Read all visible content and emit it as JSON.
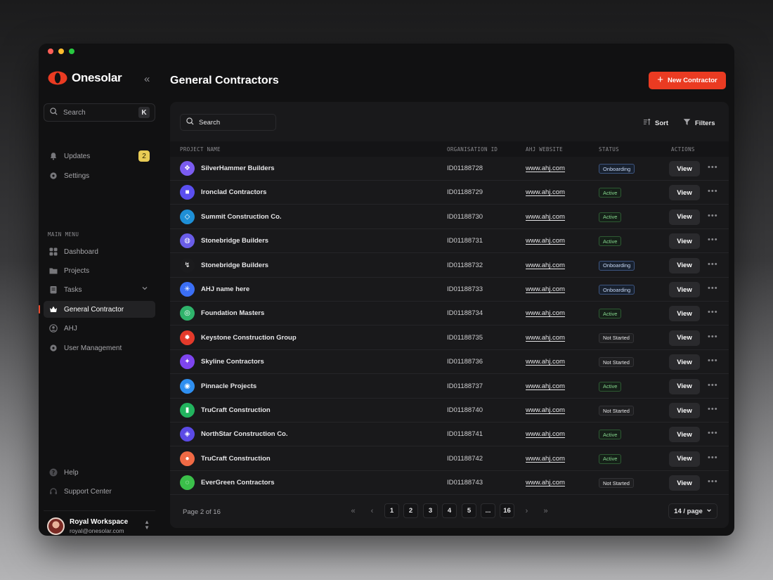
{
  "app": {
    "name": "Onesolar"
  },
  "sidebar": {
    "search_label": "Search",
    "search_shortcut": "K",
    "top_items": [
      {
        "label": "Updates",
        "icon": "bell-icon",
        "badge": "2"
      },
      {
        "label": "Settings",
        "icon": "gear-icon"
      }
    ],
    "section_label": "MAIN MENU",
    "menu_items": [
      {
        "label": "Dashboard",
        "icon": "grid-icon"
      },
      {
        "label": "Projects",
        "icon": "folder-icon"
      },
      {
        "label": "Tasks",
        "icon": "clipboard-icon"
      },
      {
        "label": "General Contractor",
        "icon": "crown-icon",
        "active": true
      },
      {
        "label": "AHJ",
        "icon": "user-circle-icon"
      },
      {
        "label": "User Management",
        "icon": "gear-icon"
      }
    ],
    "bottom_items": [
      {
        "label": "Help",
        "icon": "help-icon"
      },
      {
        "label": "Support Center",
        "icon": "headset-icon"
      }
    ],
    "user": {
      "name": "Royal Workspace",
      "email": "royal@onesolar.com"
    }
  },
  "header": {
    "title": "General Contractors",
    "new_button": "New Contractor"
  },
  "toolbar": {
    "search_label": "Search",
    "sort_label": "Sort",
    "filters_label": "Filters"
  },
  "table": {
    "columns": [
      "PROJECT NAME",
      "ORGANISATION ID",
      "AHJ WEBSITE",
      "STATUS",
      "ACTIONS"
    ],
    "view_label": "View",
    "rows": [
      {
        "name": "SilverHammer Builders",
        "org_id": "ID01188728",
        "website": "www.ahj.com",
        "status": "Onboarding",
        "icon_color": "#7b5cf0"
      },
      {
        "name": "Ironclad Contractors",
        "org_id": "ID01188729",
        "website": "www.ahj.com",
        "status": "Active",
        "icon_color": "#5b4ff0"
      },
      {
        "name": "Summit Construction Co.",
        "org_id": "ID01188730",
        "website": "www.ahj.com",
        "status": "Active",
        "icon_color": "#1e8fd6"
      },
      {
        "name": "Stonebridge Builders",
        "org_id": "ID01188731",
        "website": "www.ahj.com",
        "status": "Active",
        "icon_color": "#6a5de8"
      },
      {
        "name": "Stonebridge Builders",
        "org_id": "ID01188732",
        "website": "www.ahj.com",
        "status": "Onboarding",
        "icon_color": "#1b1b1d"
      },
      {
        "name": "AHJ name here",
        "org_id": "ID01188733",
        "website": "www.ahj.com",
        "status": "Onboarding",
        "icon_color": "#3b6ff5"
      },
      {
        "name": "Foundation Masters",
        "org_id": "ID01188734",
        "website": "www.ahj.com",
        "status": "Active",
        "icon_color": "#2fb36b"
      },
      {
        "name": "Keystone Construction Group",
        "org_id": "ID01188735",
        "website": "www.ahj.com",
        "status": "Not Started",
        "icon_color": "#e43a2b"
      },
      {
        "name": "Skyline Contractors",
        "org_id": "ID01188736",
        "website": "www.ahj.com",
        "status": "Not Started",
        "icon_color": "#7e45ef"
      },
      {
        "name": "Pinnacle Projects",
        "org_id": "ID01188737",
        "website": "www.ahj.com",
        "status": "Active",
        "icon_color": "#2f8ff0"
      },
      {
        "name": "TruCraft Construction",
        "org_id": "ID01188740",
        "website": "www.ahj.com",
        "status": "Not Started",
        "icon_color": "#22b35e"
      },
      {
        "name": "NorthStar Construction Co.",
        "org_id": "ID01188741",
        "website": "www.ahj.com",
        "status": "Active",
        "icon_color": "#5b4ae6"
      },
      {
        "name": "TruCraft Construction",
        "org_id": "ID01188742",
        "website": "www.ahj.com",
        "status": "Active",
        "icon_color": "#f06a45"
      },
      {
        "name": "EverGreen Contractors",
        "org_id": "ID01188743",
        "website": "www.ahj.com",
        "status": "Not Started",
        "icon_color": "#3bbf4a"
      }
    ]
  },
  "pagination": {
    "label": "Page 2 of 16",
    "pages": [
      "1",
      "2",
      "3",
      "4",
      "5",
      "...",
      "16"
    ],
    "per_page": "14 / page"
  },
  "colors": {
    "accent": "#ea3b22",
    "active_indicator": "#ef4a2a",
    "updates_badge": "#e9cc55"
  }
}
